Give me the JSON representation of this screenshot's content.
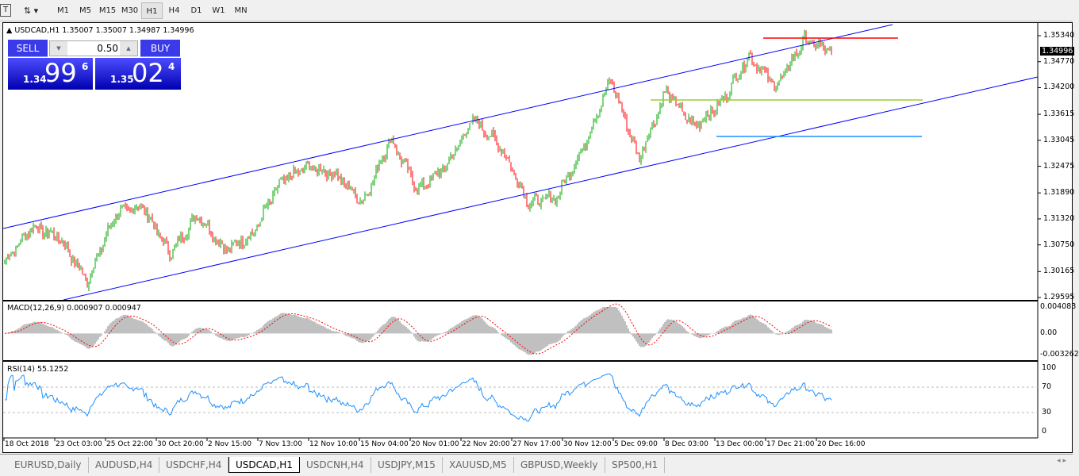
{
  "toolbar": {
    "text_tool": "T",
    "timeframes": [
      "M1",
      "M5",
      "M15",
      "M30",
      "H1",
      "H4",
      "D1",
      "W1",
      "MN"
    ],
    "active": "H1"
  },
  "chart": {
    "header": "USDCAD,H1  1.35007 1.35007 1.34987 1.34996",
    "symbol": "USDCAD",
    "timeframe": "H1",
    "ohlc": [
      "1.35007",
      "1.35007",
      "1.34987",
      "1.34996"
    ],
    "current_price": "1.34996"
  },
  "trade_panel": {
    "sell_label": "SELL",
    "buy_label": "BUY",
    "lot": "0.50",
    "sell_big": "99",
    "sell_small": "1.34",
    "sell_sup": "6",
    "buy_big": "02",
    "buy_small": "1.35",
    "buy_sup": "4"
  },
  "price_axis": [
    "1.35340",
    "1.34770",
    "1.34200",
    "1.33615",
    "1.33045",
    "1.32475",
    "1.31890",
    "1.31320",
    "1.30750",
    "1.30165",
    "1.29595"
  ],
  "macd": {
    "label": "MACD(12,26,9) 0.000907 0.000947",
    "axis": [
      "0.004083",
      "0.00",
      "-0.003262"
    ]
  },
  "rsi": {
    "label": "RSI(14) 55.1252",
    "axis": [
      "100",
      "70",
      "30",
      "0"
    ],
    "levels": [
      70,
      30
    ]
  },
  "time_axis": [
    "18 Oct 2018",
    "23 Oct 03:00",
    "25 Oct 22:00",
    "30 Oct 20:00",
    "2 Nov 15:00",
    "7 Nov 13:00",
    "12 Nov 10:00",
    "15 Nov 04:00",
    "20 Nov 01:00",
    "22 Nov 20:00",
    "27 Nov 17:00",
    "30 Nov 12:00",
    "5 Dec 09:00",
    "8 Dec 03:00",
    "13 Dec 00:00",
    "17 Dec 21:00",
    "20 Dec 16:00"
  ],
  "chart_data": {
    "type": "candlestick",
    "price_range": [
      1.29595,
      1.3534
    ],
    "approx_closes": [
      1.30378,
      1.31162,
      1.309,
      1.29943,
      1.31423,
      1.31597,
      1.30552,
      1.31423,
      1.30639,
      1.30987,
      1.32119,
      1.32467,
      1.32293,
      1.31684,
      1.33077,
      1.31945,
      1.32467,
      1.33512,
      1.32903,
      1.31684,
      1.31771,
      1.32903,
      1.34382,
      1.32641,
      1.34121,
      1.33338,
      1.3386,
      1.34905,
      1.34208,
      1.35253,
      1.34992
    ],
    "horizontal_lines": [
      {
        "price": 1.35288,
        "color": "#ff0000"
      },
      {
        "price": 1.3393,
        "color": "#9acd32"
      },
      {
        "price": 1.33129,
        "color": "#1e90ff"
      }
    ],
    "channel_color": "#0000ff",
    "bull_color": "#00aa00",
    "bear_color": "#ff0000"
  },
  "tabs": [
    "EURUSD,Daily",
    "AUDUSD,H4",
    "USDCHF,H4",
    "USDCAD,H1",
    "USDCNH,H4",
    "USDJPY,M15",
    "XAUUSD,M5",
    "GBPUSD,Weekly",
    "SP500,H1"
  ],
  "active_tab": "USDCAD,H1"
}
